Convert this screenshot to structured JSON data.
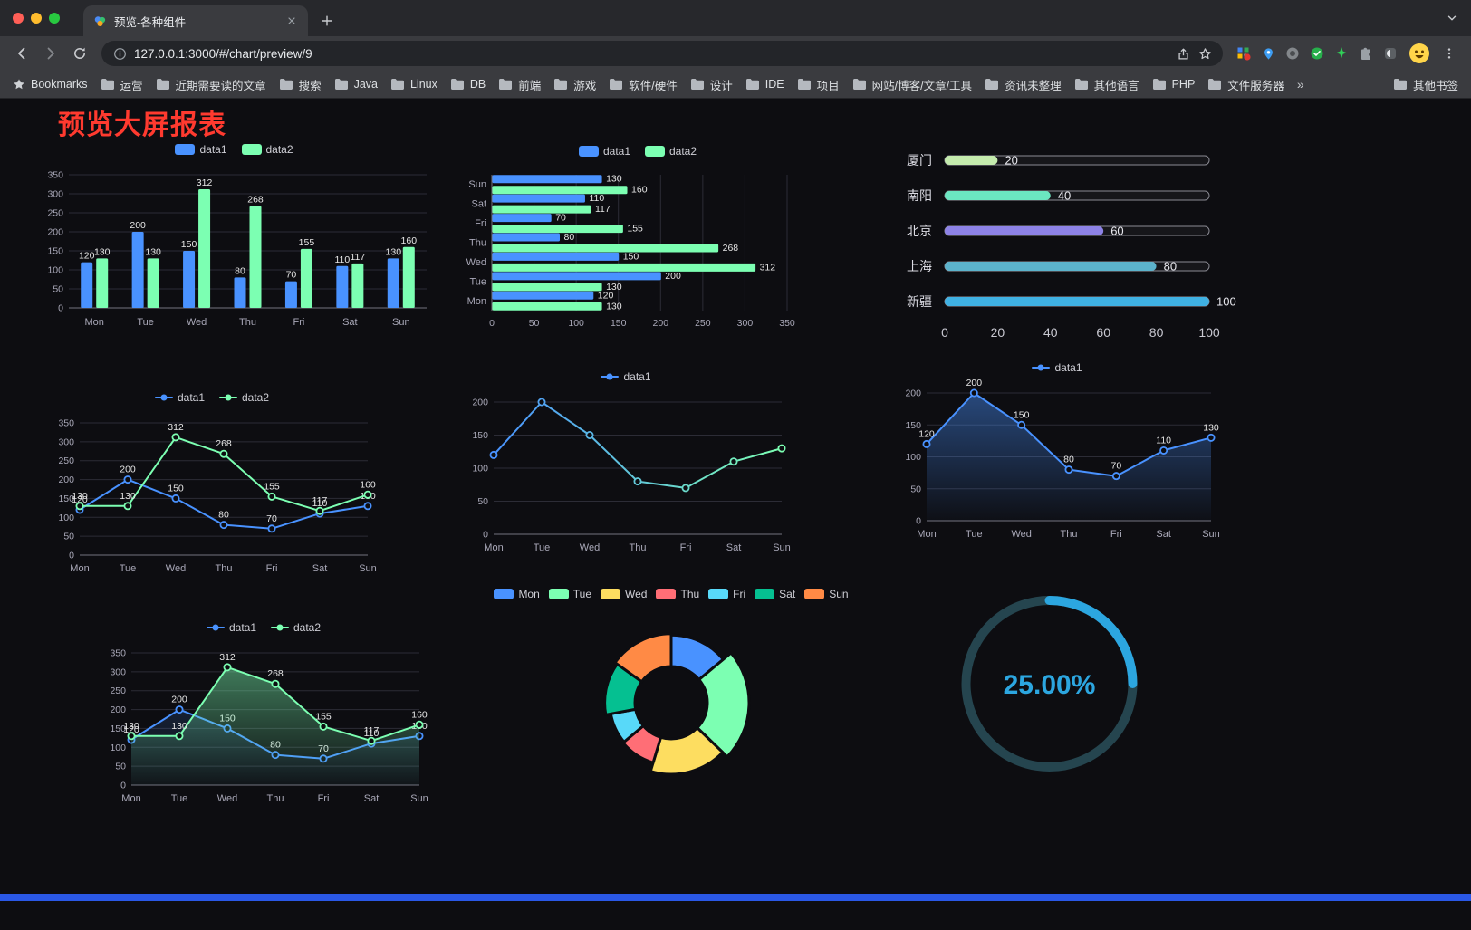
{
  "browser": {
    "tab": {
      "title": "预览-各种组件"
    },
    "toolbar": {
      "url": "127.0.0.1:3000/#/chart/preview/9"
    },
    "bookmarks": {
      "starred_label": "Bookmarks",
      "folders": [
        "运营",
        "近期需要读的文章",
        "搜索",
        "Java",
        "Linux",
        "DB",
        "前端",
        "游戏",
        "软件/硬件",
        "设计",
        "IDE",
        "项目",
        "网站/博客/文章/工具",
        "资讯未整理",
        "其他语言",
        "PHP",
        "文件服务器"
      ],
      "overflow": "»",
      "other_bookmarks": "其他书签"
    }
  },
  "page": {
    "title": "预览大屏报表",
    "title_color": "#ff3a2f",
    "footer_color": "#2a58e6",
    "background": "#0d0d11"
  },
  "chart_data": [
    {
      "type": "bar",
      "categories": [
        "Mon",
        "Tue",
        "Wed",
        "Thu",
        "Fri",
        "Sat",
        "Sun"
      ],
      "series": [
        {
          "name": "data1",
          "color": "#4992ff",
          "values": [
            120,
            200,
            150,
            80,
            70,
            110,
            130
          ]
        },
        {
          "name": "data2",
          "color": "#7cffb2",
          "values": [
            130,
            130,
            312,
            268,
            155,
            117,
            160
          ]
        }
      ],
      "ylim": [
        0,
        350
      ],
      "ystep": 50,
      "legend_position": "top",
      "grid": true
    },
    {
      "type": "hbar",
      "categories": [
        "Mon",
        "Tue",
        "Wed",
        "Thu",
        "Fri",
        "Sat",
        "Sun"
      ],
      "series": [
        {
          "name": "data1",
          "color": "#4992ff",
          "values": [
            120,
            200,
            150,
            80,
            70,
            110,
            130
          ]
        },
        {
          "name": "data2",
          "color": "#7cffb2",
          "values": [
            130,
            130,
            312,
            268,
            155,
            117,
            160
          ]
        }
      ],
      "xlim": [
        0,
        350
      ],
      "xstep": 50,
      "legend_position": "top",
      "grid": true
    },
    {
      "type": "progress",
      "items": [
        {
          "label": "厦门",
          "value": 20,
          "color": "#c4ebad"
        },
        {
          "label": "南阳",
          "value": 40,
          "color": "#6be6c1"
        },
        {
          "label": "北京",
          "value": 60,
          "color": "#8d82e6"
        },
        {
          "label": "上海",
          "value": 80,
          "color": "#5cb3cc"
        },
        {
          "label": "新疆",
          "value": 100,
          "color": "#3fb1e3"
        }
      ],
      "xlim": [
        0,
        100
      ],
      "xstep": 20
    },
    {
      "type": "line",
      "categories": [
        "Mon",
        "Tue",
        "Wed",
        "Thu",
        "Fri",
        "Sat",
        "Sun"
      ],
      "series": [
        {
          "name": "data1",
          "color": "#4992ff",
          "values": [
            120,
            200,
            150,
            80,
            70,
            110,
            130
          ],
          "show_labels": true
        },
        {
          "name": "data2",
          "color": "#7cffb2",
          "values": [
            130,
            130,
            312,
            268,
            155,
            117,
            160
          ],
          "show_labels": true
        }
      ],
      "ylim": [
        0,
        350
      ],
      "ystep": 50,
      "legend_position": "top",
      "grid": true
    },
    {
      "type": "line",
      "categories": [
        "Mon",
        "Tue",
        "Wed",
        "Thu",
        "Fri",
        "Sat",
        "Sun"
      ],
      "series": [
        {
          "name": "data1",
          "color": "#4992ff",
          "gradient": [
            "#4992ff",
            "#7cffb2"
          ],
          "values": [
            120,
            200,
            150,
            80,
            70,
            110,
            130
          ],
          "show_labels": false
        }
      ],
      "ylim": [
        0,
        200
      ],
      "ystep": 50,
      "legend_position": "top",
      "grid": true
    },
    {
      "type": "line",
      "categories": [
        "Mon",
        "Tue",
        "Wed",
        "Thu",
        "Fri",
        "Sat",
        "Sun"
      ],
      "series": [
        {
          "name": "data1",
          "color": "#4992ff",
          "values": [
            120,
            200,
            150,
            80,
            70,
            110,
            130
          ],
          "show_labels": true,
          "area": 0.45
        }
      ],
      "ylim": [
        0,
        200
      ],
      "ystep": 50,
      "legend_position": "top",
      "grid": true
    },
    {
      "type": "line",
      "categories": [
        "Mon",
        "Tue",
        "Wed",
        "Thu",
        "Fri",
        "Sat",
        "Sun"
      ],
      "series": [
        {
          "name": "data1",
          "color": "#4992ff",
          "values": [
            120,
            200,
            150,
            80,
            70,
            110,
            130
          ],
          "show_labels": true,
          "area": 0.15
        },
        {
          "name": "data2",
          "color": "#7cffb2",
          "values": [
            130,
            130,
            312,
            268,
            155,
            117,
            160
          ],
          "show_labels": true,
          "area": 0.45
        }
      ],
      "ylim": [
        0,
        350
      ],
      "ystep": 50,
      "legend_position": "top",
      "grid": true
    },
    {
      "type": "pie",
      "rose": "radius",
      "inner_radius": 40,
      "legend": [
        "Mon",
        "Tue",
        "Wed",
        "Thu",
        "Fri",
        "Sat",
        "Sun"
      ],
      "values": [
        120,
        200,
        150,
        80,
        70,
        110,
        130
      ],
      "colors": [
        "#4992ff",
        "#7cffb2",
        "#fddd60",
        "#ff6e76",
        "#58d9f9",
        "#05c091",
        "#ff8a45"
      ],
      "legend_position": "top"
    },
    {
      "type": "gauge",
      "value": 25,
      "label": "25.00%",
      "color": "#2ca6e0",
      "track_color": "#25454f"
    }
  ]
}
